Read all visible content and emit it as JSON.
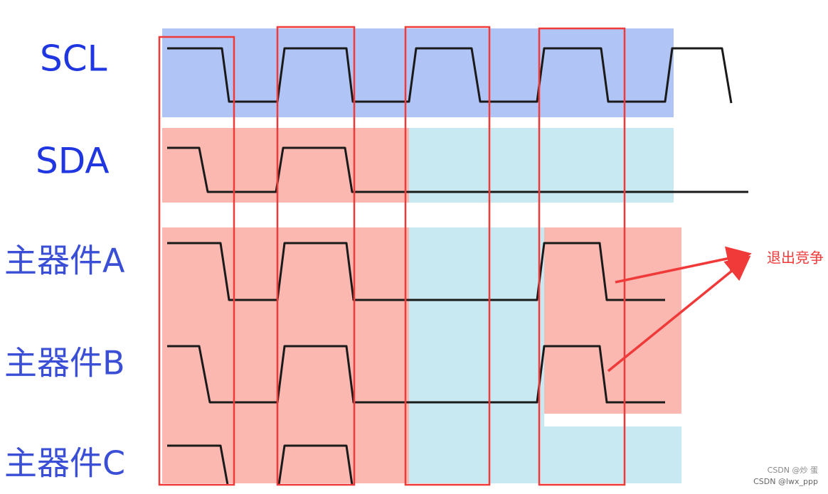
{
  "signals": {
    "scl": "SCL",
    "sda": "SDA",
    "master_a": "主器件A",
    "master_b": "主器件B",
    "master_c": "主器件C"
  },
  "annotation": "退出竞争",
  "watermark": {
    "line1": "CSDN @炒 蛋",
    "line2": "CSDN @lwx_ppp"
  }
}
